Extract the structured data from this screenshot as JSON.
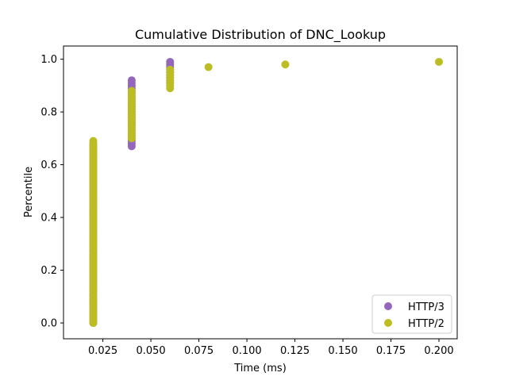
{
  "chart_data": {
    "type": "scatter",
    "title": "Cumulative Distribution of DNC_Lookup",
    "xlabel": "Time (ms)",
    "ylabel": "Percentile",
    "xlim": [
      0.0045,
      0.2095
    ],
    "ylim": [
      -0.06,
      1.05
    ],
    "xticks": [
      0.025,
      0.05,
      0.075,
      0.1,
      0.125,
      0.15,
      0.175,
      0.2
    ],
    "xtick_labels": [
      "0.025",
      "0.050",
      "0.075",
      "0.100",
      "0.125",
      "0.150",
      "0.175",
      "0.200"
    ],
    "yticks": [
      0.0,
      0.2,
      0.4,
      0.6,
      0.8,
      1.0
    ],
    "ytick_labels": [
      "0.0",
      "0.2",
      "0.4",
      "0.6",
      "0.8",
      "1.0"
    ],
    "grid": false,
    "legend_position": "bottom-right",
    "series": [
      {
        "name": "HTTP/3",
        "color": "#9467bd",
        "groups": [
          {
            "x": 0.02,
            "y_from": 0.0,
            "y_to": 0.68,
            "step": 0.01
          },
          {
            "x": 0.04,
            "y_from": 0.67,
            "y_to": 0.92,
            "step": 0.01
          },
          {
            "x": 0.06,
            "y_from": 0.91,
            "y_to": 0.99,
            "step": 0.01
          }
        ],
        "points": []
      },
      {
        "name": "HTTP/2",
        "color": "#bcbd22",
        "groups": [
          {
            "x": 0.02,
            "y_from": 0.0,
            "y_to": 0.69,
            "step": 0.01
          },
          {
            "x": 0.04,
            "y_from": 0.7,
            "y_to": 0.88,
            "step": 0.01
          },
          {
            "x": 0.06,
            "y_from": 0.89,
            "y_to": 0.96,
            "step": 0.01
          }
        ],
        "points": [
          {
            "x": 0.08,
            "y": 0.97
          },
          {
            "x": 0.12,
            "y": 0.98
          },
          {
            "x": 0.2,
            "y": 0.99
          }
        ]
      }
    ]
  }
}
